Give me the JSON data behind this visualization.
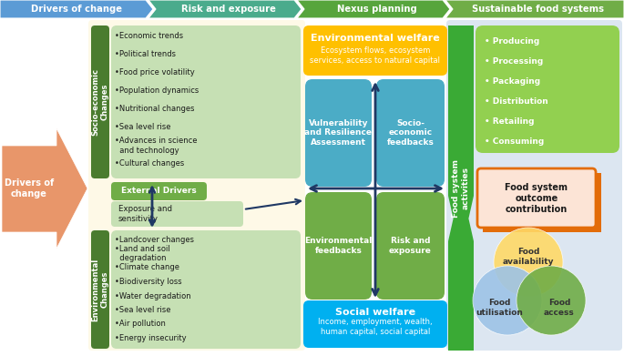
{
  "header_labels": [
    "Drivers of change",
    "Risk and exposure",
    "Nexus planning",
    "Sustainable food systems"
  ],
  "socio_items": [
    "•Economic trends",
    "•Political trends",
    "•Food price volatility",
    "•Population dynamics",
    "•Nutritional changes",
    "•Sea level rise",
    "•Advances in science\n  and technology",
    "•Cultural changes"
  ],
  "env_items": [
    "•Landcover changes",
    "•Land and soil\n  degradation",
    "•Climate change",
    "•Biodiversity loss",
    "•Water degradation",
    "•Sea level rise",
    "•Air pollution",
    "•Energy insecurity"
  ],
  "ext_driver_label": "External Drivers",
  "ext_sub_label": "Exposure and\nsensitivity",
  "drivers_arrow_label": "Drivers of\nchange",
  "env_welfare_label": "Environmental welfare",
  "env_welfare_sub": "Ecosystem flows, ecosystem\nservices, access to natural capital",
  "soc_welfare_label": "Social welfare",
  "soc_welfare_sub": "Income, employment, wealth,\nhuman capital, social capital",
  "quad_tl_label": "Vulnerability\nand Resilience\nAssessment",
  "quad_tr_label": "Socio-\neconomic\nfeedbacks",
  "quad_bl_label": "Environmental\nfeedbacks",
  "quad_br_label": "Risk and\nexposure",
  "food_system_activities_label": "Food system\nactivities",
  "food_activities_items": [
    "Producing",
    "Processing",
    "Packaging",
    "Distribution",
    "Retailing",
    "Consuming"
  ],
  "food_outcome_label": "Food system\noutcome\ncontribution",
  "food_availability_label": "Food\navailability",
  "food_utilisation_label": "Food\nutilisation",
  "food_access_label": "Food\naccess",
  "color_header_blue": "#5b9bd5",
  "color_header_teal": "#4aab8c",
  "color_header_green": "#70ad47",
  "color_beige_bg": "#fef9e7",
  "color_right_bg": "#dce6f1",
  "color_green_dark": "#4a7c2f",
  "color_green_mid": "#70ad47",
  "color_green_light": "#c6e0b4",
  "color_green_activities": "#92d050",
  "color_orange_arrow": "#e8966a",
  "color_amber": "#ffc000",
  "color_blue_welfare": "#00b0f0",
  "color_quad_blue": "#4bacc6",
  "color_quad_green": "#70ad47",
  "color_navy": "#1f3864",
  "color_orange_box": "#e36c09",
  "color_orange_box_fill": "#fce4d6",
  "color_yellow_circle": "#ffd966",
  "color_blue_circle": "#9dc3e6",
  "color_green_circle": "#70ad47"
}
